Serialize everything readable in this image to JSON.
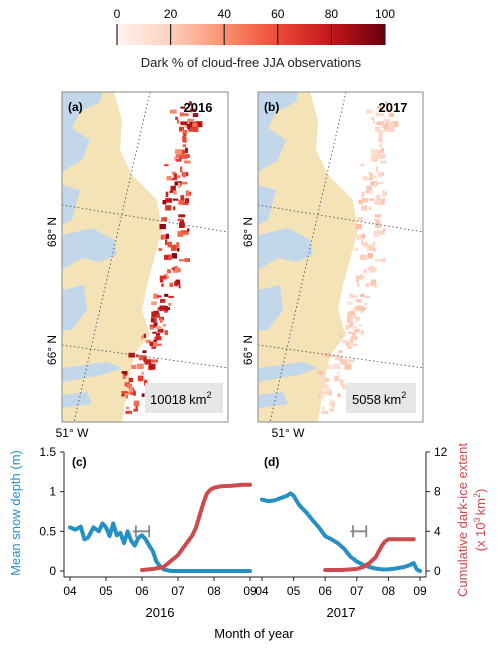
{
  "colorbar": {
    "ticks": [
      "0",
      "20",
      "40",
      "60",
      "80",
      "100"
    ],
    "tick_values": [
      0,
      20,
      40,
      60,
      80,
      100
    ],
    "label": "Dark % of cloud-free JJA observations",
    "cmap": [
      "#fff5f0",
      "#fdd0bd",
      "#fb9070",
      "#ef4a36",
      "#c1161b",
      "#67000d"
    ]
  },
  "map_colors": {
    "land": "#f5e3b8",
    "water": "#c3d7ea",
    "ice": "#ffffff",
    "frame": "#888888"
  },
  "maps": [
    {
      "panel_label": "(a)",
      "year": "2016",
      "area_value": "10018",
      "area_unit": "km",
      "area_exp": "2",
      "lat_labels": [
        "68° N",
        "66° N"
      ],
      "lon_label": "51° W",
      "intensity": 1.0
    },
    {
      "panel_label": "(b)",
      "year": "2017",
      "area_value": "5058",
      "area_unit": "km",
      "area_exp": "2",
      "lat_labels": [
        "68° N",
        "66° N"
      ],
      "lon_label": "51° W",
      "intensity": 0.28
    }
  ],
  "chart_data": [
    {
      "type": "line",
      "panel_label": "(c)",
      "xlabel": "2016",
      "x_tick_labels": [
        "04",
        "05",
        "06",
        "07",
        "08",
        "09"
      ],
      "xlim": [
        4,
        9
      ],
      "ylim_left": [
        0,
        1.5
      ],
      "ylim_right": [
        0,
        12
      ],
      "y_ticks_left": [
        "0",
        "0.5",
        "1",
        "1.5"
      ],
      "y_ticks_right": [
        "0",
        "4",
        "8",
        "12"
      ],
      "series": [
        {
          "axis": "left",
          "color": "#2790c2",
          "x": [
            4.0,
            4.15,
            4.3,
            4.4,
            4.5,
            4.65,
            4.8,
            4.9,
            5.0,
            5.1,
            5.2,
            5.3,
            5.4,
            5.5,
            5.6,
            5.7,
            5.8,
            5.9,
            6.0,
            6.1,
            6.2,
            6.3,
            6.4,
            6.5,
            6.6,
            6.8,
            7.0,
            7.5,
            8.0,
            8.5,
            9.0
          ],
          "y": [
            0.55,
            0.52,
            0.56,
            0.4,
            0.42,
            0.55,
            0.5,
            0.6,
            0.55,
            0.44,
            0.6,
            0.45,
            0.48,
            0.35,
            0.5,
            0.38,
            0.32,
            0.42,
            0.45,
            0.4,
            0.32,
            0.25,
            0.12,
            0.06,
            0.02,
            0.0,
            0.0,
            0.0,
            0.0,
            0.0,
            0.0
          ]
        },
        {
          "axis": "right",
          "color": "#cd4a4f",
          "x": [
            6.0,
            6.3,
            6.6,
            6.8,
            7.0,
            7.2,
            7.4,
            7.5,
            7.6,
            7.7,
            7.8,
            7.9,
            8.0,
            8.2,
            8.5,
            8.8,
            9.0
          ],
          "y": [
            0.1,
            0.2,
            0.4,
            1.0,
            1.6,
            2.6,
            3.6,
            4.4,
            5.6,
            6.8,
            7.8,
            8.2,
            8.4,
            8.55,
            8.6,
            8.7,
            8.7
          ]
        }
      ],
      "marker": {
        "x_start": 5.75,
        "x_end": 6.2,
        "y": 0.5
      }
    },
    {
      "type": "line",
      "panel_label": "(d)",
      "xlabel": "2017",
      "x_tick_labels": [
        "04",
        "05",
        "06",
        "07",
        "08",
        "09"
      ],
      "xlim": [
        4,
        9
      ],
      "ylim_left": [
        0,
        1.5
      ],
      "ylim_right": [
        0,
        12
      ],
      "y_ticks_left": [
        "0",
        "0.5",
        "1",
        "1.5"
      ],
      "y_ticks_right": [
        "0",
        "4",
        "8",
        "12"
      ],
      "series": [
        {
          "axis": "left",
          "color": "#2790c2",
          "x": [
            4.0,
            4.2,
            4.4,
            4.6,
            4.8,
            4.9,
            5.0,
            5.1,
            5.2,
            5.4,
            5.6,
            5.8,
            6.0,
            6.2,
            6.4,
            6.6,
            6.8,
            7.0,
            7.2,
            7.4,
            7.6,
            7.8,
            8.0,
            8.2,
            8.5,
            8.7,
            8.8,
            8.9,
            9.0
          ],
          "y": [
            0.9,
            0.88,
            0.89,
            0.92,
            0.95,
            0.98,
            0.95,
            0.88,
            0.82,
            0.74,
            0.64,
            0.55,
            0.44,
            0.4,
            0.35,
            0.28,
            0.18,
            0.12,
            0.08,
            0.05,
            0.03,
            0.02,
            0.02,
            0.03,
            0.05,
            0.08,
            0.1,
            0.02,
            0.0
          ]
        },
        {
          "axis": "right",
          "color": "#cd4a4f",
          "x": [
            6.0,
            6.5,
            7.0,
            7.2,
            7.4,
            7.6,
            7.7,
            7.8,
            7.9,
            8.0,
            8.2,
            8.5,
            8.8
          ],
          "y": [
            0.1,
            0.1,
            0.2,
            0.4,
            0.8,
            1.4,
            2.0,
            2.6,
            3.0,
            3.2,
            3.2,
            3.2,
            3.2
          ]
        }
      ],
      "marker": {
        "x_start": 6.8,
        "x_end": 7.3,
        "y": 0.5
      }
    }
  ],
  "left_axis_label": "Mean snow depth (m)",
  "right_axis_label_line1": "Cumulative dark-ice extent",
  "right_axis_label_line2": "(x 10",
  "right_axis_label_exp3": "3",
  "right_axis_label_unit": "km",
  "right_axis_label_exp2": "2",
  "right_axis_label_close": ")",
  "x_axis_label": "Month of year"
}
